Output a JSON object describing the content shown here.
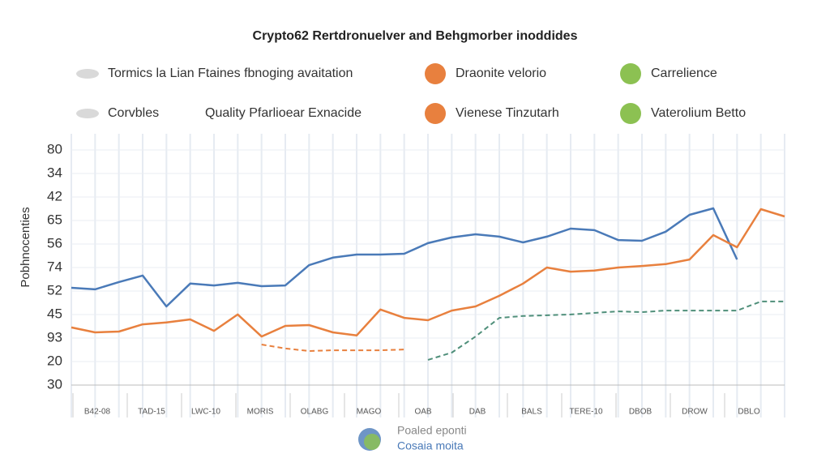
{
  "chart_data": {
    "type": "line",
    "title": "Crypto62 Rertdronuelver and Behgmorber inoddides",
    "y_axis_title": "Pobhnocenties",
    "legend": [
      {
        "label": "Tormics la Lian Ftaines fbnoging avaitation",
        "color": "#d9d9d9"
      },
      {
        "label": "Draonite velorio",
        "color": "#e8803e"
      },
      {
        "label": "Carrelience",
        "color": "#8cc152"
      },
      {
        "label": "Corvbles",
        "color": "#d9d9d9"
      },
      {
        "label": "Quality Pfarlioear Exnacide"
      },
      {
        "label": "Vienese Tinzutarh",
        "color": "#e8803e"
      },
      {
        "label": "Vaterolium Betto",
        "color": "#8cc152"
      }
    ],
    "y_labels": [
      "80",
      "34",
      "42",
      "65",
      "56",
      "74",
      "52",
      "45",
      "93",
      "20",
      "30"
    ],
    "x_labels": [
      "B42-08",
      "TAD-15",
      "LWC-10",
      "MORIS",
      "OLABG",
      "MAGO",
      "OAB",
      "DAB",
      "BALS",
      "TERE-10",
      "DBOB",
      "DROW",
      "DBLO"
    ],
    "ylim": [
      0,
      100
    ],
    "series": [
      {
        "color": "#4a7ab8",
        "dash": false,
        "values": [
          42.2,
          41.6,
          44.4,
          46.9,
          35,
          43.8,
          43.1,
          44.1,
          42.8,
          43.1,
          50.9,
          53.8,
          55,
          55,
          55.3,
          59.4,
          61.6,
          62.8,
          61.9,
          59.7,
          61.9,
          65,
          64.4,
          60.6,
          60.3,
          63.8,
          70.3,
          72.8,
          53.1,
          null,
          null
        ]
      },
      {
        "color": "#e8803e",
        "dash": false,
        "values": [
          26.9,
          25,
          25.3,
          28.1,
          28.8,
          30,
          25.6,
          31.9,
          23.4,
          27.5,
          27.8,
          25,
          23.8,
          33.8,
          30.6,
          29.7,
          33.4,
          35,
          39.1,
          43.8,
          50,
          48.4,
          48.8,
          50,
          50.6,
          51.3,
          53.1,
          62.5,
          57.8,
          72.5,
          69.7
        ]
      },
      {
        "color": "#e8803e",
        "dash": true,
        "values": [
          null,
          null,
          null,
          null,
          null,
          null,
          null,
          null,
          20.3,
          18.8,
          17.8,
          18.1,
          18.1,
          18.1,
          18.4,
          null,
          null,
          null,
          null,
          null,
          null,
          null,
          null,
          null,
          null,
          null,
          null,
          null,
          null,
          null,
          null
        ]
      },
      {
        "color": "#4f8f7a",
        "dash": true,
        "values": [
          null,
          null,
          null,
          null,
          null,
          null,
          null,
          null,
          null,
          null,
          null,
          null,
          null,
          null,
          null,
          14.4,
          17.2,
          23.4,
          30.6,
          31.3,
          31.6,
          31.9,
          32.5,
          33.1,
          32.8,
          33.4,
          33.4,
          33.4,
          33.4,
          36.9,
          36.9
        ]
      }
    ],
    "footer": {
      "line1": "Poaled eponti",
      "line2": "Cosaia moita"
    }
  }
}
